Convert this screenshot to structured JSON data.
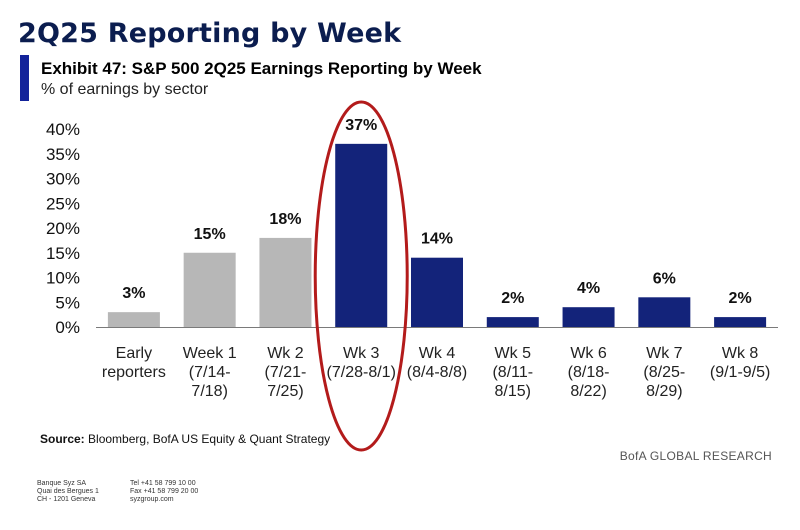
{
  "header": {
    "title": "2Q25 Reporting by Week",
    "exhibit": "Exhibit 47: S&P 500 2Q25 Earnings Reporting by Week",
    "subtitle": "% of earnings by sector"
  },
  "colors": {
    "navy": "#13237a",
    "gray": "#b7b7b7",
    "highlight_ellipse": "#b31b1b",
    "accent": "#13239a"
  },
  "chart_data": {
    "type": "bar",
    "title": "Exhibit 47: S&P 500 2Q25 Earnings Reporting by Week",
    "subtitle": "% of earnings by sector",
    "categories": [
      [
        "Early",
        "reporters"
      ],
      [
        "Week 1",
        "(7/14-",
        "7/18)"
      ],
      [
        "Wk 2",
        "(7/21-",
        "7/25)"
      ],
      [
        "Wk 3",
        "(7/28-8/1)"
      ],
      [
        "Wk 4",
        "(8/4-8/8)"
      ],
      [
        "Wk 5",
        "(8/11-",
        "8/15)"
      ],
      [
        "Wk 6",
        "(8/18-",
        "8/22)"
      ],
      [
        "Wk 7",
        "(8/25-",
        "8/29)"
      ],
      [
        "Wk 8",
        "(9/1-9/5)"
      ]
    ],
    "values": [
      3,
      15,
      18,
      37,
      14,
      2,
      4,
      6,
      2
    ],
    "data_labels": [
      "3%",
      "15%",
      "18%",
      "37%",
      "14%",
      "2%",
      "4%",
      "6%",
      "2%"
    ],
    "bar_colors": [
      "gray",
      "gray",
      "gray",
      "navy",
      "navy",
      "navy",
      "navy",
      "navy",
      "navy"
    ],
    "yticks": [
      "0%",
      "5%",
      "10%",
      "15%",
      "20%",
      "25%",
      "30%",
      "35%",
      "40%"
    ],
    "ylim": [
      0,
      40
    ],
    "grid": false,
    "legend": "none",
    "highlight": {
      "category_index": 3,
      "shape": "ellipse"
    }
  },
  "source": {
    "label": "Source:",
    "text": "Bloomberg, BofA US Equity & Quant Strategy"
  },
  "brand": "BofA GLOBAL RESEARCH",
  "footer": {
    "left": [
      "Banque Syz SA",
      "Quai des Bergues 1",
      "CH - 1201 Geneva"
    ],
    "right": [
      "Tel  +41 58 799 10 00",
      "Fax  +41 58 799 20 00",
      "syzgroup.com"
    ]
  }
}
